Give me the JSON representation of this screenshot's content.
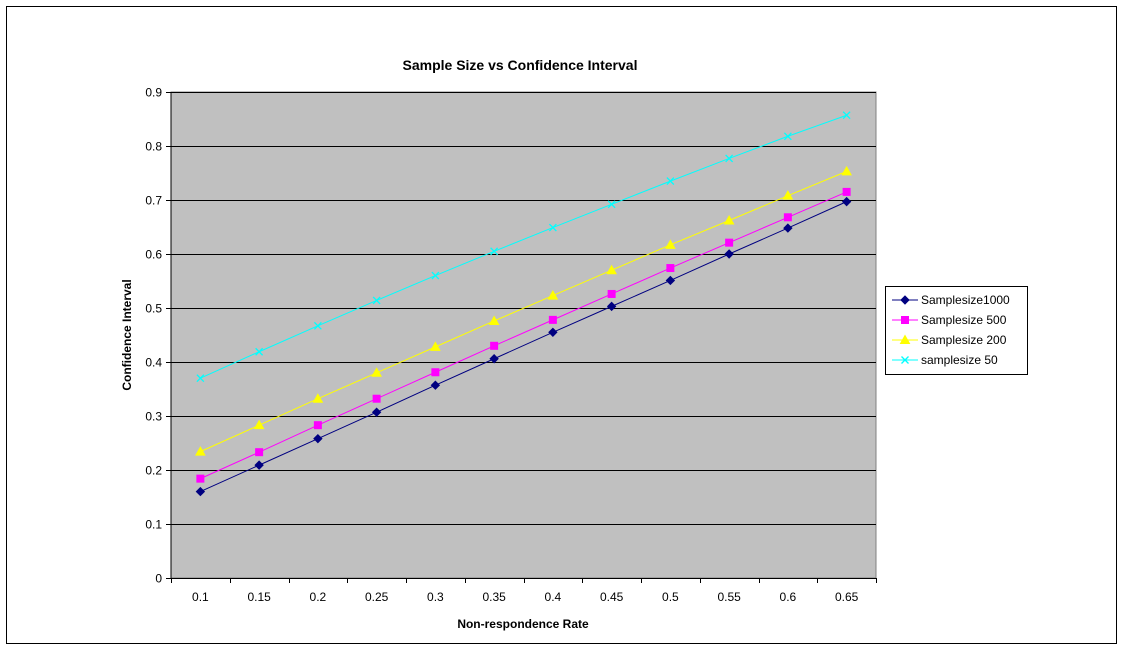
{
  "chart_data": {
    "type": "line",
    "title": "Sample Size vs Confidence Interval",
    "xlabel": "Non-respondence Rate",
    "ylabel": "Confidence Interval",
    "categories": [
      "0.1",
      "0.15",
      "0.2",
      "0.25",
      "0.3",
      "0.35",
      "0.4",
      "0.45",
      "0.5",
      "0.55",
      "0.6",
      "0.65"
    ],
    "yticks": [
      "0",
      "0.1",
      "0.2",
      "0.3",
      "0.4",
      "0.5",
      "0.6",
      "0.7",
      "0.8",
      "0.9"
    ],
    "ylim": [
      0,
      0.9
    ],
    "grid": "horizontal",
    "legend_position": "right",
    "plot_background": "#C0C0C0",
    "series": [
      {
        "name": "Samplesize1000",
        "color": "#000080",
        "marker": "diamond",
        "values": [
          0.16,
          0.209,
          0.258,
          0.307,
          0.357,
          0.406,
          0.455,
          0.503,
          0.551,
          0.6,
          0.648,
          0.697
        ]
      },
      {
        "name": "Samplesize 500",
        "color": "#FF00FF",
        "marker": "square",
        "values": [
          0.184,
          0.233,
          0.283,
          0.332,
          0.381,
          0.43,
          0.478,
          0.526,
          0.574,
          0.621,
          0.668,
          0.715
        ]
      },
      {
        "name": "Samplesize 200",
        "color": "#FFFF00",
        "marker": "triangle",
        "values": [
          0.234,
          0.283,
          0.332,
          0.38,
          0.428,
          0.476,
          0.523,
          0.57,
          0.617,
          0.662,
          0.708,
          0.753
        ]
      },
      {
        "name": "samplesize  50",
        "color": "#00FFFF",
        "marker": "x",
        "values": [
          0.37,
          0.419,
          0.467,
          0.514,
          0.56,
          0.605,
          0.649,
          0.692,
          0.735,
          0.777,
          0.818,
          0.857
        ]
      }
    ]
  }
}
